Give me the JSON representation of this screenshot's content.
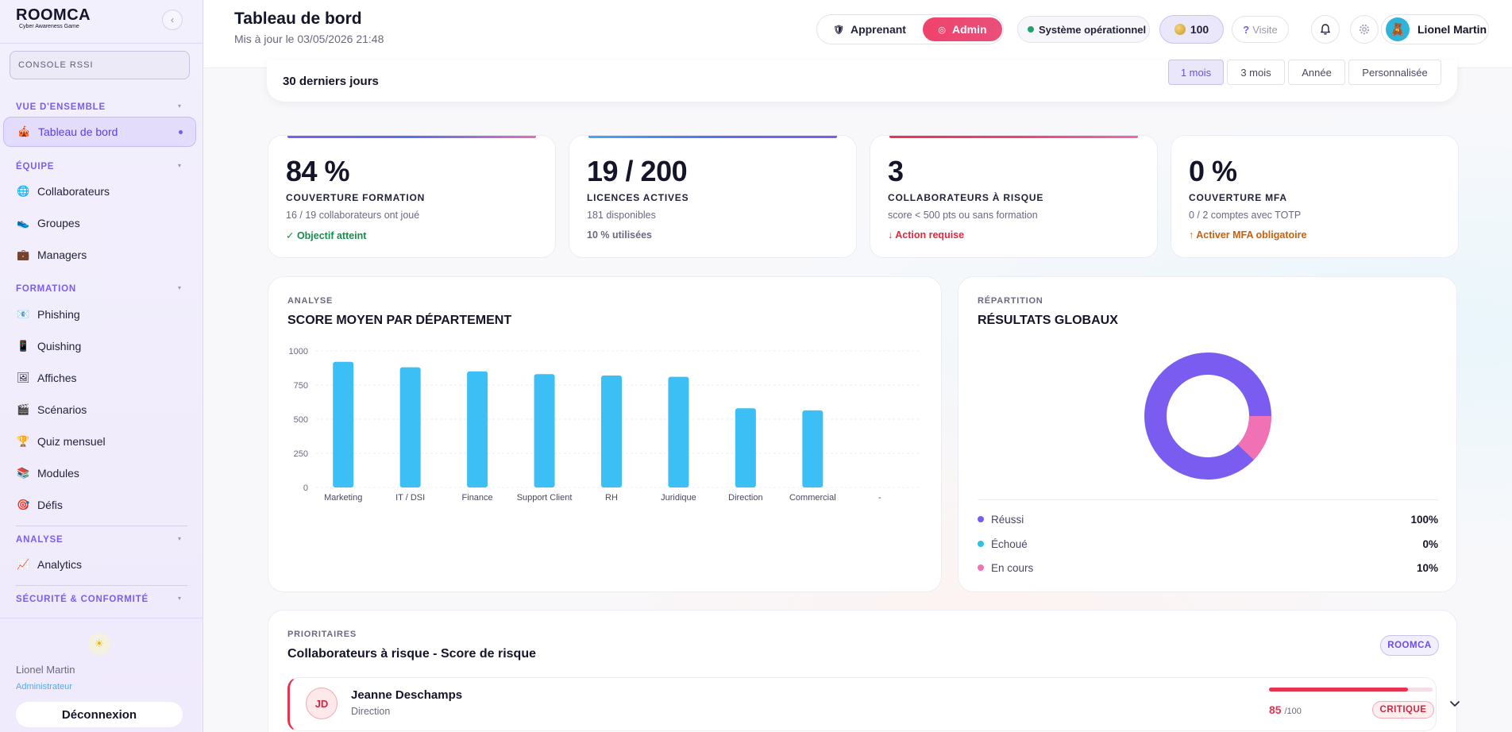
{
  "app": {
    "logo_title": "ROOMCA",
    "logo_subtitle": "Cyber Awareness Game"
  },
  "sidebar": {
    "console_label": "CONSOLE RSSI",
    "sections": {
      "overview": "VUE D'ENSEMBLE",
      "team": "ÉQUIPE",
      "training": "FORMATION",
      "analysis": "ANALYSE",
      "security": "SÉCURITÉ & CONFORMITÉ"
    },
    "items": {
      "dashboard": "Tableau de bord",
      "collaborators": "Collaborateurs",
      "groups": "Groupes",
      "managers": "Managers",
      "phishing": "Phishing",
      "quishing": "Quishing",
      "posters": "Affiches",
      "scenarios": "Scénarios",
      "quiz": "Quiz mensuel",
      "modules": "Modules",
      "challenges": "Défis",
      "analytics": "Analytics"
    },
    "user_name": "Lionel Martin",
    "user_role": "Administrateur",
    "logout_label": "Déconnexion"
  },
  "header": {
    "title": "Tableau de bord",
    "subtitle": "Mis à jour le 03/05/2026 21:48",
    "role_learner": "Apprenant",
    "role_admin": "Admin",
    "status": "Système opérationnel",
    "points": "100",
    "visit": "Visite",
    "user_name": "Lionel Martin"
  },
  "period": {
    "title": "30 derniers jours",
    "options": [
      "1 mois",
      "3 mois",
      "Année",
      "Personnalisée"
    ],
    "active": "1 mois"
  },
  "kpis": [
    {
      "value": "84 %",
      "label": "COUVERTURE FORMATION",
      "sub": "16 / 19 collaborateurs ont joué",
      "note": "✓ Objectif atteint",
      "note_color": "#1a8a4c",
      "bar": "linear-gradient(90deg,#7b5cf0,#5a6ff0,#e86bb5)"
    },
    {
      "value": "19 / 200",
      "label": "LICENCES ACTIVES",
      "sub": "181 disponibles",
      "note": "10 % utilisées",
      "note_color": "#6b6880",
      "bar": "linear-gradient(90deg,#3fa9f5,#5a6ff0,#7b5cf0)"
    },
    {
      "value": "3",
      "label": "COLLABORATEURS À RISQUE",
      "sub": "score < 500 pts ou sans formation",
      "note": "↓ Action requise",
      "note_color": "#e0283f",
      "bar": "linear-gradient(90deg,#e8334f,#f0426b,#e86bb5)"
    },
    {
      "value": "0 %",
      "label": "COUVERTURE MFA",
      "sub": "0 / 2 comptes avec TOTP",
      "note": "↑ Activer MFA obligatoire",
      "note_color": "#c8600e",
      "bar": "transparent"
    }
  ],
  "dept_chart": {
    "eyebrow": "ANALYSE",
    "title": "SCORE MOYEN PAR DÉPARTEMENT"
  },
  "chart_data": {
    "type": "bar",
    "title": "SCORE MOYEN PAR DÉPARTEMENT",
    "categories": [
      "Marketing",
      "IT / DSI",
      "Finance",
      "Support Client",
      "RH",
      "Juridique",
      "Direction",
      "Commercial",
      "-"
    ],
    "values": [
      920,
      880,
      850,
      830,
      820,
      810,
      580,
      565,
      0
    ],
    "ylim": [
      0,
      1000
    ],
    "yticks": [
      0,
      250,
      500,
      750,
      1000
    ],
    "color": "#3bbff5",
    "grid": true
  },
  "results": {
    "eyebrow": "RÉPARTITION",
    "title": "RÉSULTATS GLOBAUX",
    "legend": [
      {
        "label": "Réussi",
        "pct": "100%",
        "color": "#7b5cf0"
      },
      {
        "label": "Échoué",
        "pct": "0%",
        "color": "#2fc3e0"
      },
      {
        "label": "En cours",
        "pct": "10%",
        "color": "#f072b5"
      }
    ]
  },
  "risk": {
    "eyebrow": "PRIORITAIRES",
    "title": "Collaborateurs à risque - Score de risque",
    "badge": "ROOMCA",
    "rows": [
      {
        "initials": "JD",
        "name": "Jeanne Deschamps",
        "dept": "Direction",
        "score": "85",
        "max": "/100",
        "score_fraction": 0.85,
        "level": "CRITIQUE"
      }
    ]
  }
}
